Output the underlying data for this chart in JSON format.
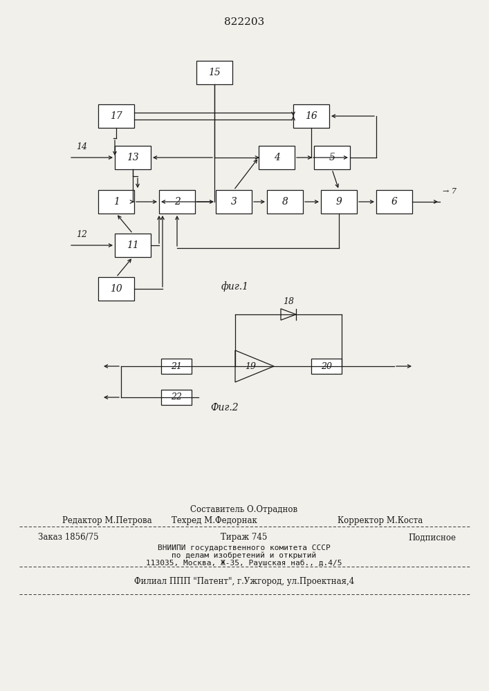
{
  "title": "822203",
  "fig1_caption": "фиг.1",
  "fig2_caption": "Фиг.2",
  "bg_color": "#f2f0eb",
  "line_color": "#1a1a1a",
  "box_color": "#ffffff",
  "footer_line1_left": "Редактор М.Петрова",
  "footer_line1_center": "Составитель О.Отраднов",
  "footer_line2_center": "Техред М.Федорнак",
  "footer_line2_right": "Корректор М.Коста",
  "footer_line3_left": "Заказ 1856/75",
  "footer_line3_center": "Тираж 745",
  "footer_line3_right": "Подписное",
  "footer_line4": "ВНИИПИ государственного комитета СССР",
  "footer_line5": "по делам изобретений и открытий",
  "footer_line6": "113035, Москва, Ж-35, Раушская наб., д.4/5",
  "footer_line7": "Филиал ППП \"Патент\", г.Ужгород, ул.Проектная,4"
}
